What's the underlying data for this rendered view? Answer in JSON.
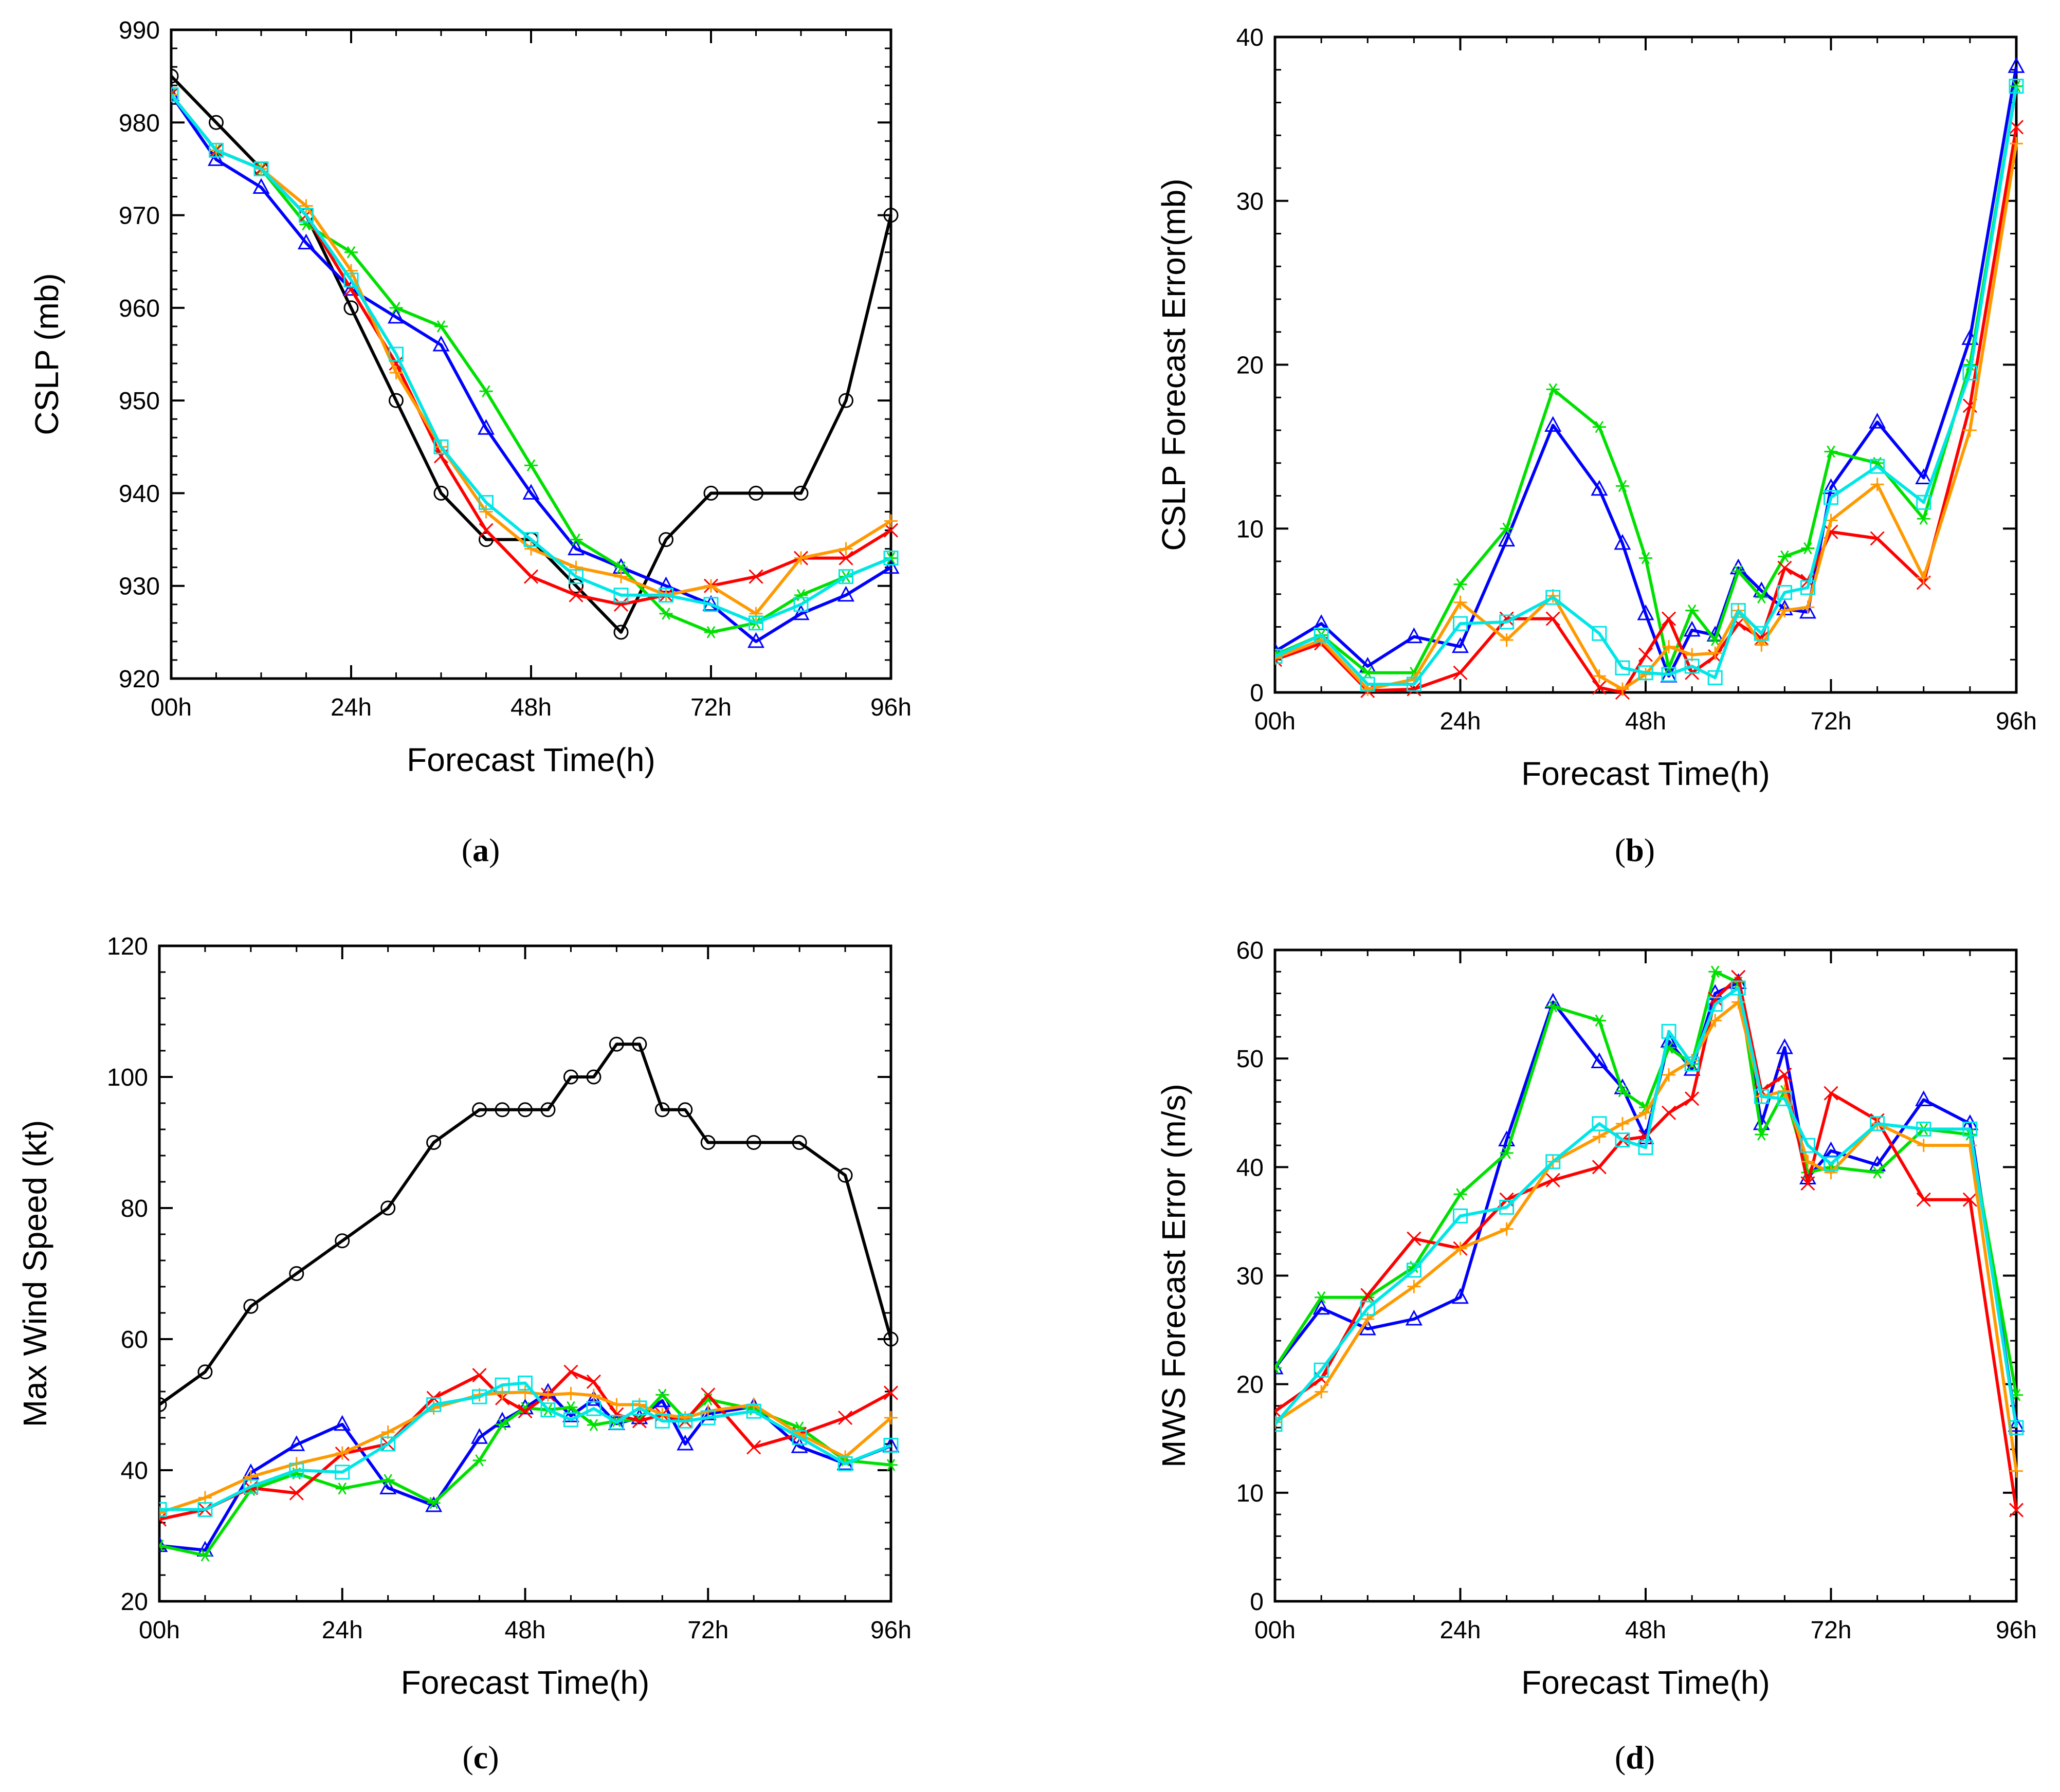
{
  "figure_name": "hurricane-forecast-four-panel",
  "chart_data": [
    {
      "type": "line",
      "panel_label_open": "(",
      "panel_label_letter": "a",
      "panel_label_close": ")",
      "ylabel": "CSLP (mb)",
      "xlabel": "Forecast Time(h)",
      "ylim": [
        920,
        990
      ],
      "yticks": [
        920,
        930,
        940,
        950,
        960,
        970,
        980,
        990
      ],
      "ytick_labels": [
        "920",
        "930",
        "940",
        "950",
        "960",
        "970",
        "980",
        "990"
      ],
      "xlim": [
        0,
        96
      ],
      "xticks": [
        0,
        24,
        48,
        72,
        96
      ],
      "xtick_labels": [
        "00h",
        "24h",
        "48h",
        "72h",
        "96h"
      ],
      "x": [
        0,
        6,
        12,
        18,
        24,
        30,
        36,
        42,
        48,
        54,
        60,
        66,
        72,
        78,
        84,
        90,
        96
      ],
      "series": [
        {
          "name": "black",
          "color": "#000000",
          "marker": "circle",
          "values": [
            985,
            980,
            975,
            970,
            960,
            950,
            940,
            935,
            935,
            930,
            925,
            935,
            940,
            940,
            940,
            950,
            970
          ]
        },
        {
          "name": "blue",
          "color": "#0000ff",
          "marker": "triangle",
          "values": [
            983,
            976,
            973,
            967,
            962,
            959,
            956,
            947,
            940,
            934,
            932,
            930,
            928,
            924,
            927,
            929,
            932
          ]
        },
        {
          "name": "green",
          "color": "#00e000",
          "marker": "star",
          "values": [
            983,
            977,
            975,
            969,
            966,
            960,
            958,
            951,
            943,
            935,
            932,
            927,
            925,
            926,
            929,
            931,
            933
          ]
        },
        {
          "name": "red",
          "color": "#ff0000",
          "marker": "x",
          "values": [
            983,
            977,
            975,
            970,
            962,
            954,
            944,
            936,
            931,
            929,
            928,
            929,
            930,
            931,
            933,
            933,
            936
          ]
        },
        {
          "name": "orange",
          "color": "#ff9900",
          "marker": "plus",
          "values": [
            983,
            977,
            975,
            971,
            964,
            953,
            945,
            938,
            934,
            932,
            931,
            929,
            930,
            927,
            933,
            934,
            937
          ]
        },
        {
          "name": "cyan",
          "color": "#00e6e6",
          "marker": "square",
          "values": [
            983,
            977,
            975,
            970,
            963,
            955,
            945,
            939,
            935,
            931,
            929,
            929,
            928,
            926,
            928,
            931,
            933
          ]
        }
      ]
    },
    {
      "type": "line",
      "panel_label_open": "(",
      "panel_label_letter": "b",
      "panel_label_close": ")",
      "ylabel": "CSLP Forecast Error(mb)",
      "xlabel": "Forecast Time(h)",
      "ylim": [
        0,
        40
      ],
      "yticks": [
        0,
        10,
        20,
        30,
        40
      ],
      "ytick_labels": [
        "0",
        "10",
        "20",
        "30",
        "40"
      ],
      "xlim": [
        0,
        96
      ],
      "xticks": [
        0,
        24,
        48,
        72,
        96
      ],
      "xtick_labels": [
        "00h",
        "24h",
        "48h",
        "72h",
        "96h"
      ],
      "x": [
        0,
        6,
        12,
        18,
        24,
        30,
        36,
        42,
        45,
        48,
        51,
        54,
        57,
        60,
        63,
        66,
        69,
        72,
        78,
        84,
        90,
        96
      ],
      "series": [
        {
          "name": "blue",
          "color": "#0000ff",
          "marker": "triangle",
          "values": [
            2.5,
            4.2,
            1.6,
            3.4,
            2.8,
            9.3,
            16.3,
            12.4,
            9.1,
            4.8,
            1.0,
            3.8,
            3.5,
            7.6,
            6.2,
            5.1,
            4.9,
            12.5,
            16.5,
            13.1,
            21.6,
            38.2
          ]
        },
        {
          "name": "green",
          "color": "#00e000",
          "marker": "star",
          "values": [
            2.3,
            3.5,
            1.2,
            1.2,
            6.6,
            10.0,
            18.5,
            16.2,
            12.6,
            8.2,
            1.5,
            5.0,
            3.2,
            7.4,
            5.8,
            8.3,
            8.8,
            14.7,
            14.0,
            10.6,
            20.0,
            37.0
          ]
        },
        {
          "name": "red",
          "color": "#ff0000",
          "marker": "x",
          "values": [
            2.0,
            3.0,
            0.1,
            0.2,
            1.2,
            4.5,
            4.5,
            0.3,
            0.0,
            2.3,
            4.5,
            1.2,
            2.2,
            4.2,
            3.3,
            7.6,
            6.8,
            9.8,
            9.4,
            6.7,
            17.5,
            34.5
          ]
        },
        {
          "name": "orange",
          "color": "#ff9900",
          "marker": "plus",
          "values": [
            2.1,
            3.2,
            0.2,
            0.8,
            5.5,
            3.2,
            5.9,
            1.0,
            0.2,
            1.1,
            2.8,
            2.3,
            2.4,
            5.0,
            2.9,
            5.0,
            5.2,
            10.5,
            12.7,
            7.0,
            16.0,
            33.5
          ]
        },
        {
          "name": "cyan",
          "color": "#00e6e6",
          "marker": "square",
          "values": [
            2.2,
            3.5,
            0.5,
            0.5,
            4.2,
            4.3,
            5.8,
            3.6,
            1.5,
            1.2,
            1.1,
            1.6,
            0.9,
            5.0,
            3.6,
            6.1,
            6.4,
            11.9,
            13.8,
            11.6,
            19.5,
            37.0
          ]
        }
      ]
    },
    {
      "type": "line",
      "panel_label_open": "(",
      "panel_label_letter": "c",
      "panel_label_close": ")",
      "ylabel": "Max Wind Speed (kt)",
      "xlabel": "Forecast Time(h)",
      "ylim": [
        20,
        120
      ],
      "yticks": [
        20,
        40,
        60,
        80,
        100,
        120
      ],
      "ytick_labels": [
        "20",
        "40",
        "60",
        "80",
        "100",
        "120"
      ],
      "xlim": [
        0,
        96
      ],
      "xticks": [
        0,
        24,
        48,
        72,
        96
      ],
      "xtick_labels": [
        "00h",
        "24h",
        "48h",
        "72h",
        "96h"
      ],
      "x": [
        0,
        6,
        12,
        18,
        24,
        30,
        36,
        42,
        45,
        48,
        51,
        54,
        57,
        60,
        63,
        66,
        69,
        72,
        78,
        84,
        90,
        96
      ],
      "series": [
        {
          "name": "black",
          "color": "#000000",
          "marker": "circle",
          "values": [
            50,
            55,
            65,
            70,
            75,
            80,
            90,
            95,
            95,
            95,
            95,
            100,
            100,
            105,
            105,
            95,
            95,
            90,
            90,
            90,
            85,
            60
          ]
        },
        {
          "name": "blue",
          "color": "#0000ff",
          "marker": "triangle",
          "values": [
            28.5,
            27.8,
            39.6,
            43.9,
            47.0,
            37.3,
            34.6,
            45.0,
            47.5,
            49.5,
            51.9,
            48.3,
            50.8,
            47.1,
            48.0,
            50.6,
            44.0,
            48.6,
            49.7,
            43.6,
            41.0,
            43.7
          ]
        },
        {
          "name": "green",
          "color": "#00e000",
          "marker": "star",
          "values": [
            28.5,
            27.0,
            37.0,
            39.5,
            37.2,
            38.5,
            35.0,
            41.5,
            47.0,
            49.5,
            49.2,
            49.6,
            46.9,
            47.5,
            47.7,
            51.5,
            47.8,
            50.8,
            49.3,
            46.5,
            41.5,
            40.8
          ]
        },
        {
          "name": "red",
          "color": "#ff0000",
          "marker": "x",
          "values": [
            32.5,
            34.0,
            37.3,
            36.5,
            42.5,
            44.0,
            51.0,
            54.5,
            51.0,
            49.0,
            51.5,
            55.0,
            53.5,
            48.5,
            47.5,
            48.5,
            47.5,
            51.5,
            43.5,
            45.5,
            48.0,
            51.8
          ]
        },
        {
          "name": "orange",
          "color": "#ff9900",
          "marker": "plus",
          "values": [
            33.5,
            35.8,
            39.0,
            41.0,
            42.6,
            45.8,
            49.5,
            51.5,
            51.8,
            51.9,
            51.5,
            51.7,
            51.4,
            50.0,
            50.0,
            48.5,
            48.0,
            49.0,
            50.0,
            45.5,
            42.0,
            48.0
          ]
        },
        {
          "name": "cyan",
          "color": "#00e6e6",
          "marker": "square",
          "values": [
            34.0,
            34.0,
            37.5,
            40.0,
            39.7,
            44.0,
            50.0,
            51.2,
            53.0,
            53.3,
            49.2,
            47.7,
            49.4,
            47.3,
            49.5,
            47.5,
            47.5,
            48.0,
            49.0,
            45.0,
            41.0,
            43.8
          ]
        }
      ]
    },
    {
      "type": "line",
      "panel_label_open": "(",
      "panel_label_letter": "d",
      "panel_label_close": ")",
      "ylabel": "MWS Forecast Error (m/s)",
      "xlabel": "Forecast Time(h)",
      "ylim": [
        0,
        60
      ],
      "yticks": [
        0,
        10,
        20,
        30,
        40,
        50,
        60
      ],
      "ytick_labels": [
        "0",
        "10",
        "20",
        "30",
        "40",
        "50",
        "60"
      ],
      "xlim": [
        0,
        96
      ],
      "xticks": [
        0,
        24,
        48,
        72,
        96
      ],
      "xtick_labels": [
        "00h",
        "24h",
        "48h",
        "72h",
        "96h"
      ],
      "x": [
        0,
        6,
        12,
        18,
        24,
        30,
        36,
        42,
        45,
        48,
        51,
        54,
        57,
        60,
        63,
        66,
        69,
        72,
        78,
        84,
        90,
        96
      ],
      "series": [
        {
          "name": "blue",
          "color": "#0000ff",
          "marker": "triangle",
          "values": [
            21.5,
            27.0,
            25.1,
            26.0,
            28.0,
            42.5,
            55.2,
            49.7,
            47.3,
            42.7,
            51.6,
            49.0,
            56.0,
            57.0,
            44.0,
            51.0,
            39.0,
            41.5,
            40.2,
            46.2,
            44.0,
            16.2
          ]
        },
        {
          "name": "green",
          "color": "#00e000",
          "marker": "star",
          "values": [
            21.5,
            28.0,
            28.0,
            30.8,
            37.5,
            41.3,
            54.8,
            53.5,
            47.0,
            45.5,
            51.0,
            49.5,
            58.0,
            57.0,
            43.0,
            47.0,
            39.5,
            40.0,
            39.5,
            43.5,
            43.0,
            19.0
          ]
        },
        {
          "name": "red",
          "color": "#ff0000",
          "marker": "x",
          "values": [
            17.5,
            20.5,
            28.2,
            33.4,
            32.5,
            37.0,
            38.8,
            40.0,
            42.5,
            42.8,
            45.0,
            46.3,
            55.5,
            57.5,
            47.0,
            48.5,
            38.5,
            46.8,
            44.3,
            37.0,
            37.0,
            8.4
          ]
        },
        {
          "name": "orange",
          "color": "#ff9900",
          "marker": "plus",
          "values": [
            16.5,
            19.3,
            26.0,
            29.0,
            32.5,
            34.3,
            40.5,
            42.8,
            44.0,
            45.0,
            48.5,
            49.8,
            53.5,
            55.2,
            46.5,
            47.0,
            40.5,
            39.5,
            44.0,
            42.0,
            42.0,
            12.0
          ]
        },
        {
          "name": "cyan",
          "color": "#00e6e6",
          "marker": "square",
          "values": [
            16.3,
            21.3,
            27.0,
            30.5,
            35.5,
            36.3,
            40.5,
            44.0,
            42.5,
            41.8,
            52.5,
            49.5,
            55.0,
            56.5,
            46.5,
            46.3,
            42.0,
            40.3,
            44.0,
            43.5,
            43.5,
            16.0
          ]
        }
      ]
    }
  ]
}
